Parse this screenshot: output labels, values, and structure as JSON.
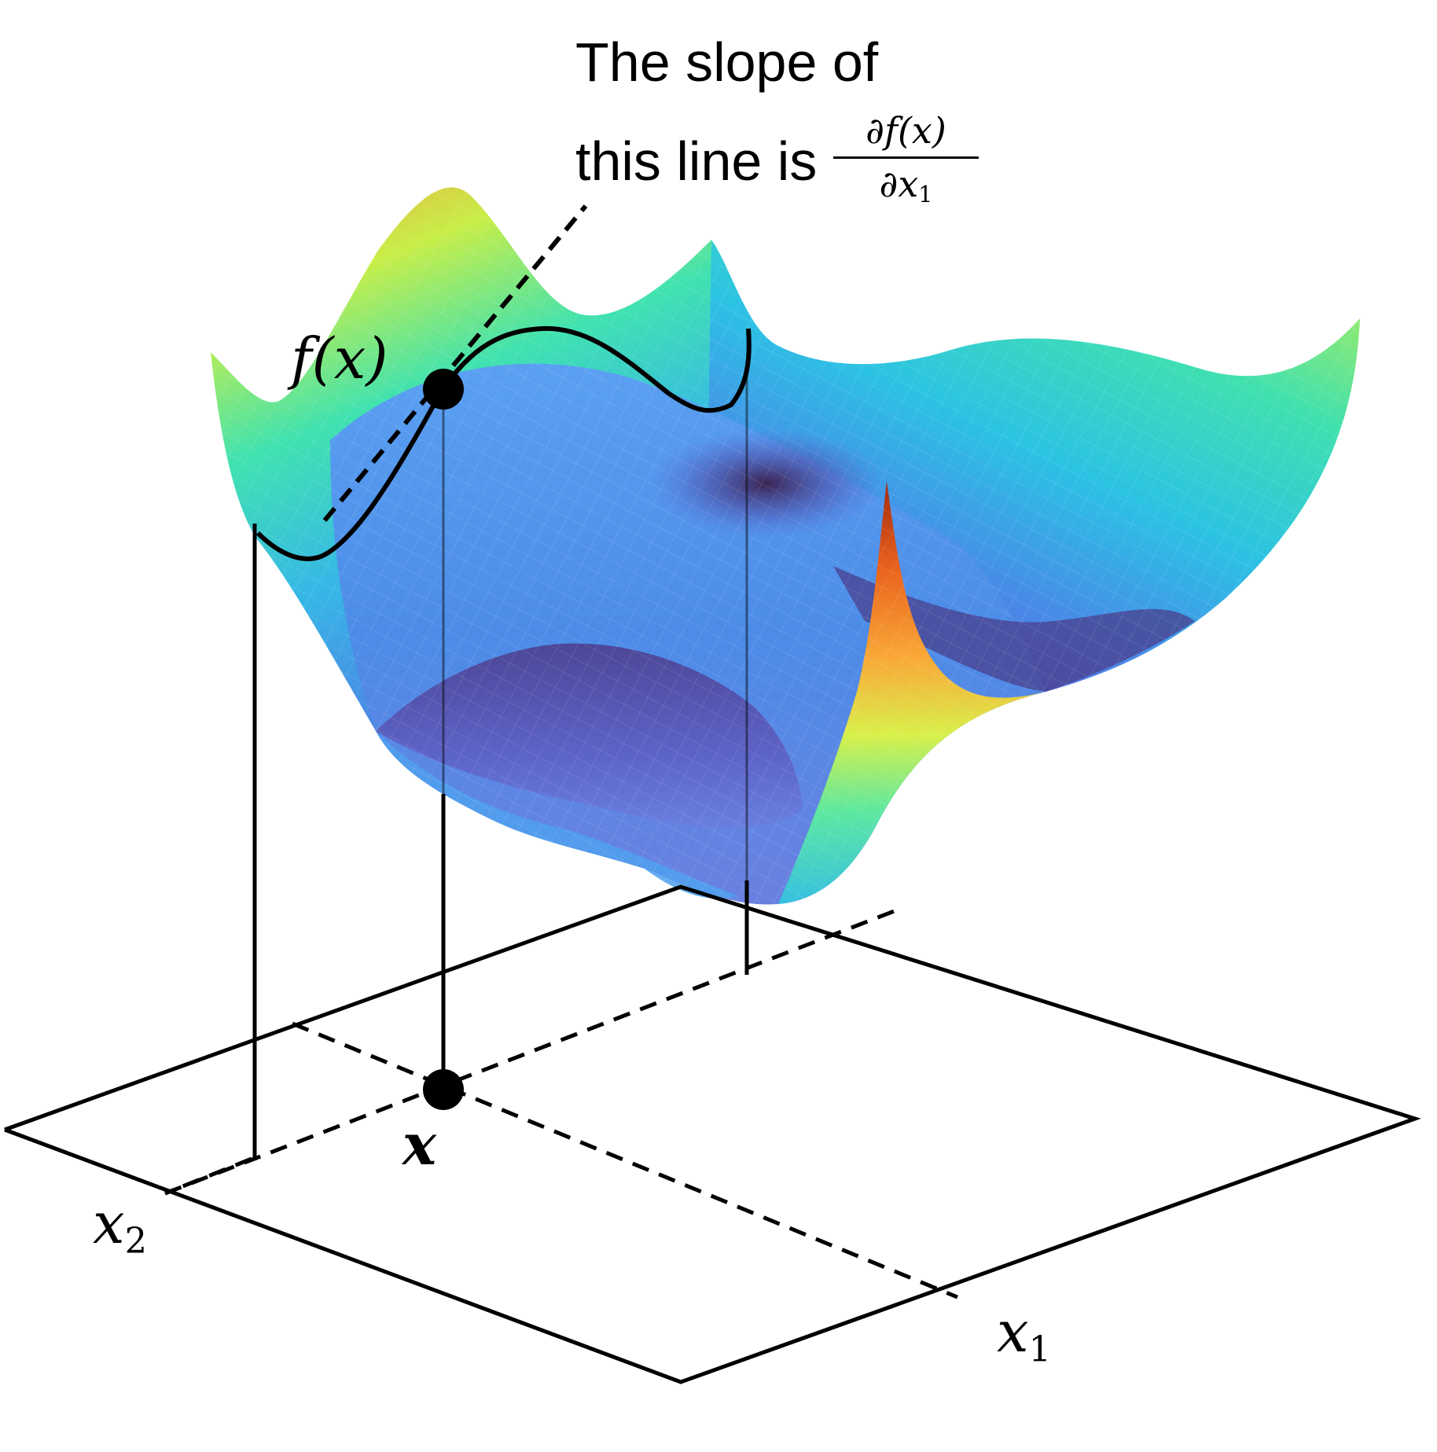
{
  "annotation": {
    "line1": "The slope of",
    "line2": "this line is",
    "fraction_numerator": "∂f(x)",
    "fraction_denominator_var": "∂x",
    "fraction_denominator_sub": "1"
  },
  "labels": {
    "fx": "f(x)",
    "x_point": "x",
    "axis_x1_var": "x",
    "axis_x1_sub": "1",
    "axis_x2_var": "x",
    "axis_x2_sub": "2"
  },
  "surface": {
    "colormap": "turbo",
    "colors": {
      "low": "#30123b",
      "mid_low": "#4a7de8",
      "mid": "#26c2e0",
      "mid_high": "#a6f25a",
      "high": "#f89b32",
      "peak": "#c43c10"
    }
  },
  "colors": {
    "lines": "#000000",
    "background": "#ffffff"
  }
}
